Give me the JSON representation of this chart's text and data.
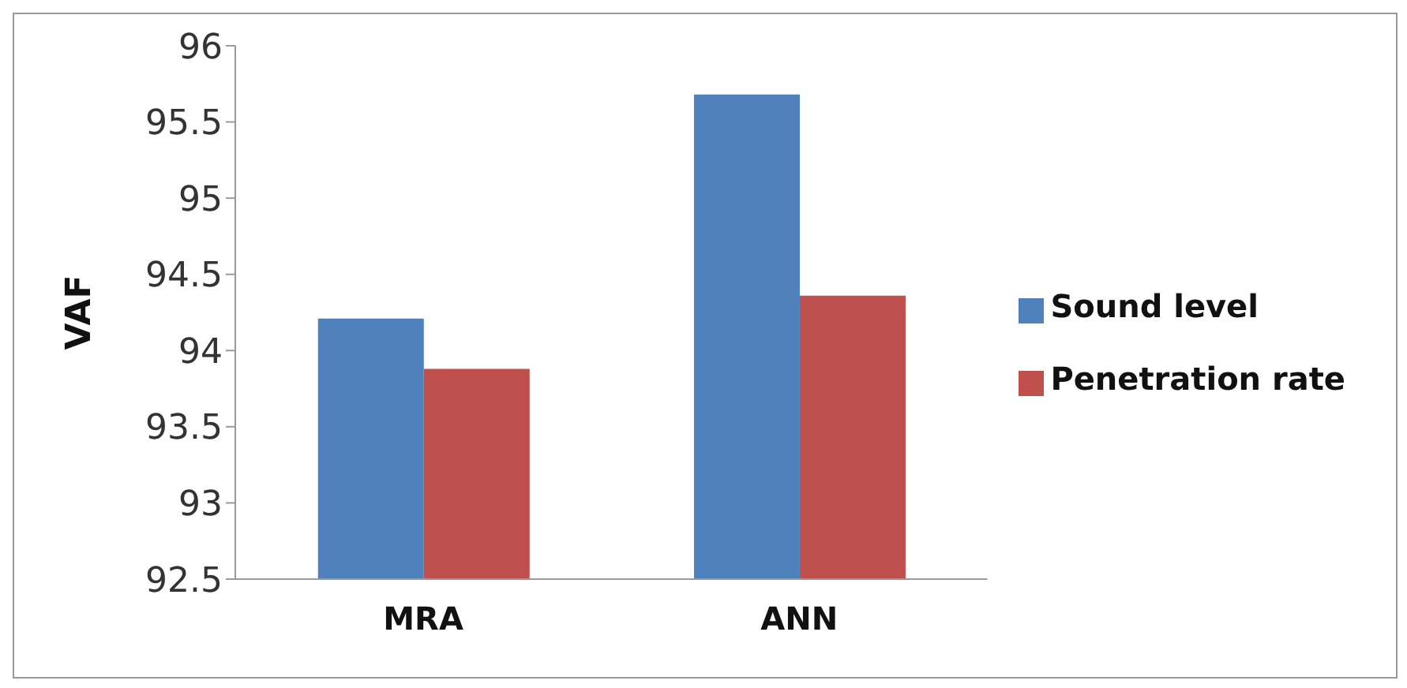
{
  "chart_data": {
    "type": "bar",
    "ylabel": "VAF",
    "categories": [
      "MRA",
      "ANN"
    ],
    "series": [
      {
        "name": "Sound level",
        "color": "#4f81bd",
        "values": [
          94.21,
          95.68
        ]
      },
      {
        "name": "Penetration rate",
        "color": "#c0504d",
        "values": [
          93.88,
          94.36
        ]
      }
    ],
    "ylim": [
      92.5,
      96
    ],
    "yticks": [
      92.5,
      93,
      93.5,
      94,
      94.5,
      95,
      95.5,
      96
    ],
    "grid": false,
    "legend": "right"
  }
}
